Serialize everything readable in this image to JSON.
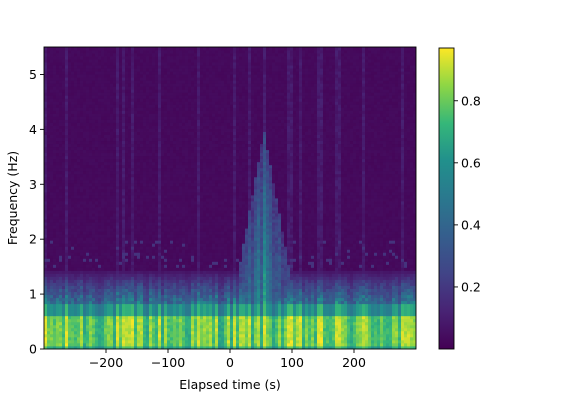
{
  "chart_data": {
    "type": "heatmap",
    "title": "",
    "xlabel": "Elapsed time (s)",
    "ylabel": "Frequency (Hz)",
    "xlim": [
      -300,
      300
    ],
    "ylim": [
      0,
      5.5
    ],
    "x_ticks": [
      {
        "value": -200,
        "label": "−200"
      },
      {
        "value": -100,
        "label": "−100"
      },
      {
        "value": 0,
        "label": "0"
      },
      {
        "value": 100,
        "label": "100"
      },
      {
        "value": 200,
        "label": "200"
      }
    ],
    "y_ticks": [
      {
        "value": 0,
        "label": "0"
      },
      {
        "value": 1,
        "label": "1"
      },
      {
        "value": 2,
        "label": "2"
      },
      {
        "value": 3,
        "label": "3"
      },
      {
        "value": 4,
        "label": "4"
      },
      {
        "value": 5,
        "label": "5"
      }
    ],
    "colormap": "viridis",
    "colorbar": {
      "range": [
        0,
        0.97
      ],
      "ticks": [
        {
          "value": 0.2,
          "label": "0.2"
        },
        {
          "value": 0.4,
          "label": "0.4"
        },
        {
          "value": 0.6,
          "label": "0.6"
        },
        {
          "value": 0.8,
          "label": "0.8"
        }
      ]
    },
    "features": [
      {
        "time_range": [
          -300,
          300
        ],
        "freq_range": [
          0,
          0.8
        ],
        "level": 0.85
      },
      {
        "time_range": [
          -300,
          300
        ],
        "freq_range": [
          0.8,
          1.3
        ],
        "level": 0.35
      },
      {
        "time_range": [
          20,
          80
        ],
        "freq_range": [
          0,
          4
        ],
        "level": 0.75
      }
    ]
  }
}
